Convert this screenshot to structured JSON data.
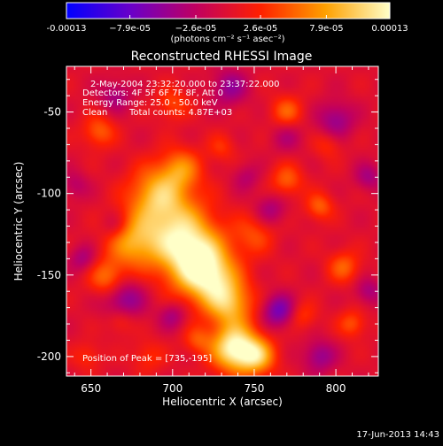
{
  "colorbar": {
    "tick_labels": [
      "-0.00013",
      "−7.9e-05",
      "−2.6e-05",
      "2.6e-05",
      "7.9e-05",
      "0.00013"
    ],
    "tick_values": [
      -0.00013,
      -7.9e-05,
      -2.6e-05,
      2.6e-05,
      7.9e-05,
      0.00013
    ],
    "range": [
      -0.00013,
      0.00013
    ],
    "unit_label": "(photons cm⁻² s⁻¹ asec⁻²)",
    "colormap": [
      "#0000ff",
      "#6a00c8",
      "#c00060",
      "#ff2000",
      "#ffa000",
      "#ffffc8"
    ]
  },
  "chart_data": {
    "type": "heatmap",
    "title": "Reconstructed RHESSI Image",
    "xlabel": "Heliocentric X (arcsec)",
    "ylabel": "Heliocentric Y (arcsec)",
    "xlim": [
      635,
      826
    ],
    "ylim": [
      -212,
      -22
    ],
    "x_ticks": [
      650,
      700,
      750,
      800
    ],
    "y_ticks": [
      -50,
      -100,
      -150,
      -200
    ],
    "peak": [
      735,
      -195
    ],
    "blobs": [
      {
        "x": 700,
        "y": -120,
        "s": 16,
        "a": 7.5e-05
      },
      {
        "x": 712,
        "y": -138,
        "s": 14,
        "a": 0.0001
      },
      {
        "x": 723,
        "y": -152,
        "s": 12,
        "a": 9e-05
      },
      {
        "x": 735,
        "y": -168,
        "s": 10,
        "a": 8e-05
      },
      {
        "x": 738,
        "y": -195,
        "s": 10,
        "a": 0.00013
      },
      {
        "x": 752,
        "y": -200,
        "s": 8,
        "a": 8e-05
      },
      {
        "x": 675,
        "y": -130,
        "s": 11,
        "a": 7e-05
      },
      {
        "x": 660,
        "y": -152,
        "s": 8,
        "a": 6e-05
      },
      {
        "x": 690,
        "y": -100,
        "s": 12,
        "a": 7e-05
      },
      {
        "x": 705,
        "y": -85,
        "s": 9,
        "a": 6e-05
      },
      {
        "x": 750,
        "y": -125,
        "s": 9,
        "a": 4e-05
      },
      {
        "x": 770,
        "y": -92,
        "s": 7,
        "a": 5e-05
      },
      {
        "x": 790,
        "y": -108,
        "s": 6,
        "a": 5e-05
      },
      {
        "x": 805,
        "y": -145,
        "s": 7,
        "a": 5e-05
      },
      {
        "x": 810,
        "y": -180,
        "s": 6,
        "a": 4.5e-05
      },
      {
        "x": 655,
        "y": -62,
        "s": 7,
        "a": 5e-05
      },
      {
        "x": 700,
        "y": -45,
        "s": 7,
        "a": 4e-05
      },
      {
        "x": 770,
        "y": -50,
        "s": 7,
        "a": 5e-05
      },
      {
        "x": 715,
        "y": -190,
        "s": 6,
        "a": 4e-05
      },
      {
        "x": 780,
        "y": -175,
        "s": 6,
        "a": 3.5e-05
      },
      {
        "x": 668,
        "y": -178,
        "s": 6,
        "a": 3.5e-05
      },
      {
        "x": 730,
        "y": -72,
        "s": 6,
        "a": 3e-05
      },
      {
        "x": 795,
        "y": -70,
        "s": 6,
        "a": 3e-05
      },
      {
        "x": 648,
        "y": -200,
        "s": 6,
        "a": 3e-05
      },
      {
        "x": 685,
        "y": -200,
        "s": 7,
        "a": 3e-05
      },
      {
        "x": 665,
        "y": -40,
        "s": 7,
        "a": -4e-05
      },
      {
        "x": 735,
        "y": -35,
        "s": 8,
        "a": -5e-05
      },
      {
        "x": 770,
        "y": -65,
        "s": 7,
        "a": -3e-05
      },
      {
        "x": 800,
        "y": -55,
        "s": 8,
        "a": -5e-05
      },
      {
        "x": 820,
        "y": -90,
        "s": 6,
        "a": -4e-05
      },
      {
        "x": 670,
        "y": -165,
        "s": 9,
        "a": -6e-05
      },
      {
        "x": 665,
        "y": -120,
        "s": 6,
        "a": -3e-05
      },
      {
        "x": 760,
        "y": -110,
        "s": 7,
        "a": -4e-05
      },
      {
        "x": 765,
        "y": -172,
        "s": 7,
        "a": -7e-05
      },
      {
        "x": 700,
        "y": -175,
        "s": 6,
        "a": -4e-05
      },
      {
        "x": 790,
        "y": -200,
        "s": 7,
        "a": -5e-05
      },
      {
        "x": 820,
        "y": -160,
        "s": 6,
        "a": -4e-05
      },
      {
        "x": 640,
        "y": -95,
        "s": 6,
        "a": -3e-05
      },
      {
        "x": 745,
        "y": -90,
        "s": 6,
        "a": -3e-05
      },
      {
        "x": 645,
        "y": -140,
        "s": 6,
        "a": -4e-05
      }
    ]
  },
  "annotations": {
    "time_range": "2-May-2004 23:32:20.000 to 23:37:22.000",
    "detectors": "Detectors: 4F 5F 6F 7F 8F, Att 0",
    "energy_range": "Energy Range: 25.0 - 50.0 keV",
    "method": "Clean",
    "total_counts": "Total counts: 4.87E+03",
    "peak_label": "Position of Peak = [735,-195]"
  },
  "timestamp": "17-Jun-2013 14:43"
}
